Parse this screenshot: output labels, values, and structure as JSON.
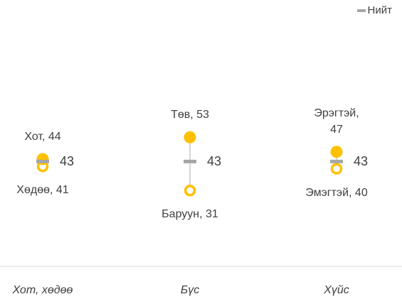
{
  "chart_data": {
    "type": "dot-range",
    "categories": [
      "Хот, хөдөө",
      "Бүс",
      "Хүйс"
    ],
    "high": {
      "color": "#ffc000",
      "values": [
        44,
        53,
        47
      ],
      "value_labels": [
        "Хот, 44",
        "Төв, 53",
        "Эрэгтэй, 47"
      ]
    },
    "low": {
      "color": "#ffc000",
      "values": [
        41,
        31,
        40
      ],
      "value_labels": [
        "Хөдөө, 41",
        "Баруун, 31",
        "Эмэгтэй, 40"
      ]
    },
    "series": [
      {
        "name": "Нийт",
        "color": "#a6a6a6",
        "values": [
          43,
          43,
          43
        ]
      }
    ],
    "ylim": [
      0,
      100
    ],
    "legend": "top-right"
  }
}
